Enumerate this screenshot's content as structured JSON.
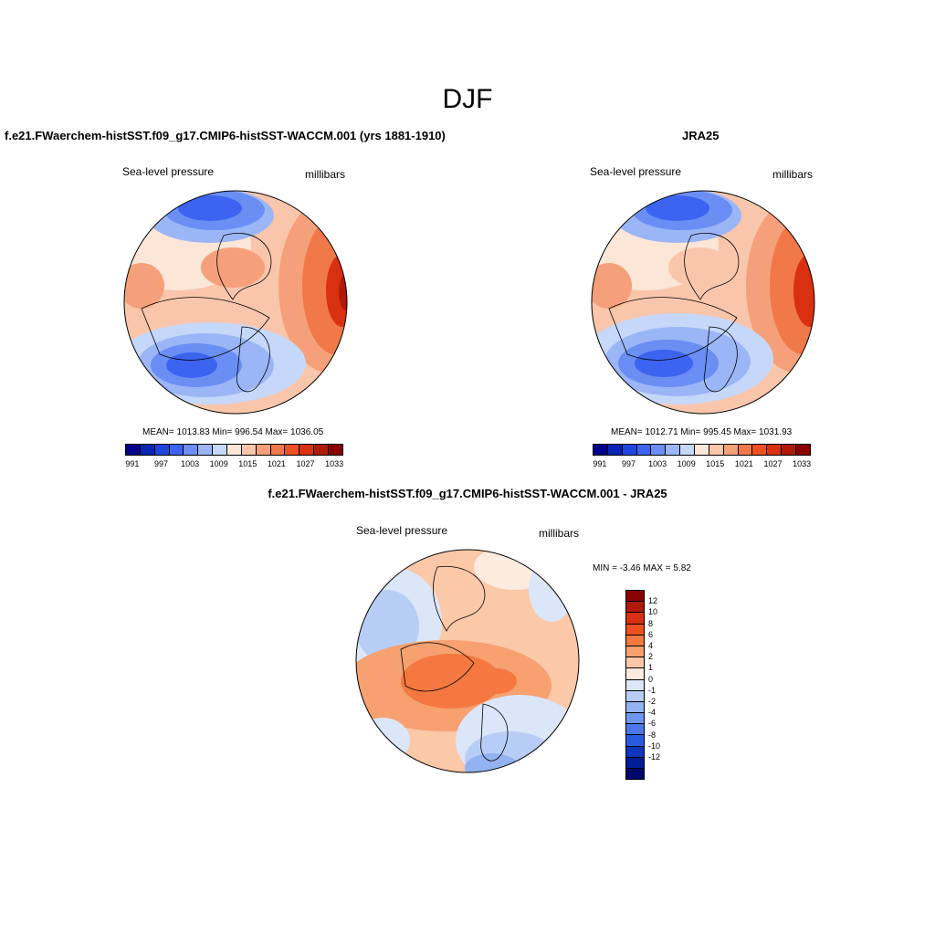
{
  "season": "DJF",
  "panels": [
    {
      "title": "f.e21.FWaerchem-histSST.f09_g17.CMIP6-histSST-WACCM.001 (yrs 1881-1910)",
      "variable": "Sea-level pressure",
      "units": "millibars",
      "stats": "MEAN= 1013.83  Min= 996.54  Max= 1036.05"
    },
    {
      "title": "JRA25",
      "variable": "Sea-level pressure",
      "units": "millibars",
      "stats": "MEAN= 1012.71  Min= 995.45  Max= 1031.93"
    },
    {
      "title": "f.e21.FWaerchem-histSST.f09_g17.CMIP6-histSST-WACCM.001 - JRA25",
      "variable": "Sea-level pressure",
      "units": "millibars",
      "stats": "MIN =  -3.46 MAX =   5.82"
    }
  ],
  "abs_colorbar": {
    "colors": [
      "#00008b",
      "#0a25b4",
      "#1e46dc",
      "#3c64f0",
      "#6a8ef4",
      "#9bb6f7",
      "#c6d8fa",
      "#fbe6d8",
      "#f9c6ac",
      "#f5a07a",
      "#f17848",
      "#ec5020",
      "#d83010",
      "#b01a08",
      "#8b0000"
    ],
    "tick_labels": [
      "991",
      "997",
      "1003",
      "1009",
      "1015",
      "1021",
      "1027",
      "1033"
    ]
  },
  "diff_colorbar": {
    "colors": [
      "#8b0000",
      "#b01a08",
      "#d83010",
      "#f05020",
      "#f47840",
      "#f7a070",
      "#fbc8a8",
      "#fdebdf",
      "#dbe6f8",
      "#b8cdf6",
      "#93b2f2",
      "#6f96ee",
      "#4a78ea",
      "#2a5ae0",
      "#1036c0",
      "#001d9a",
      "#00086a"
    ],
    "tick_labels": [
      "12",
      "10",
      "8",
      "6",
      "4",
      "2",
      "1",
      "0",
      "-1",
      "-2",
      "-4",
      "-6",
      "-8",
      "-10",
      "-12"
    ]
  }
}
